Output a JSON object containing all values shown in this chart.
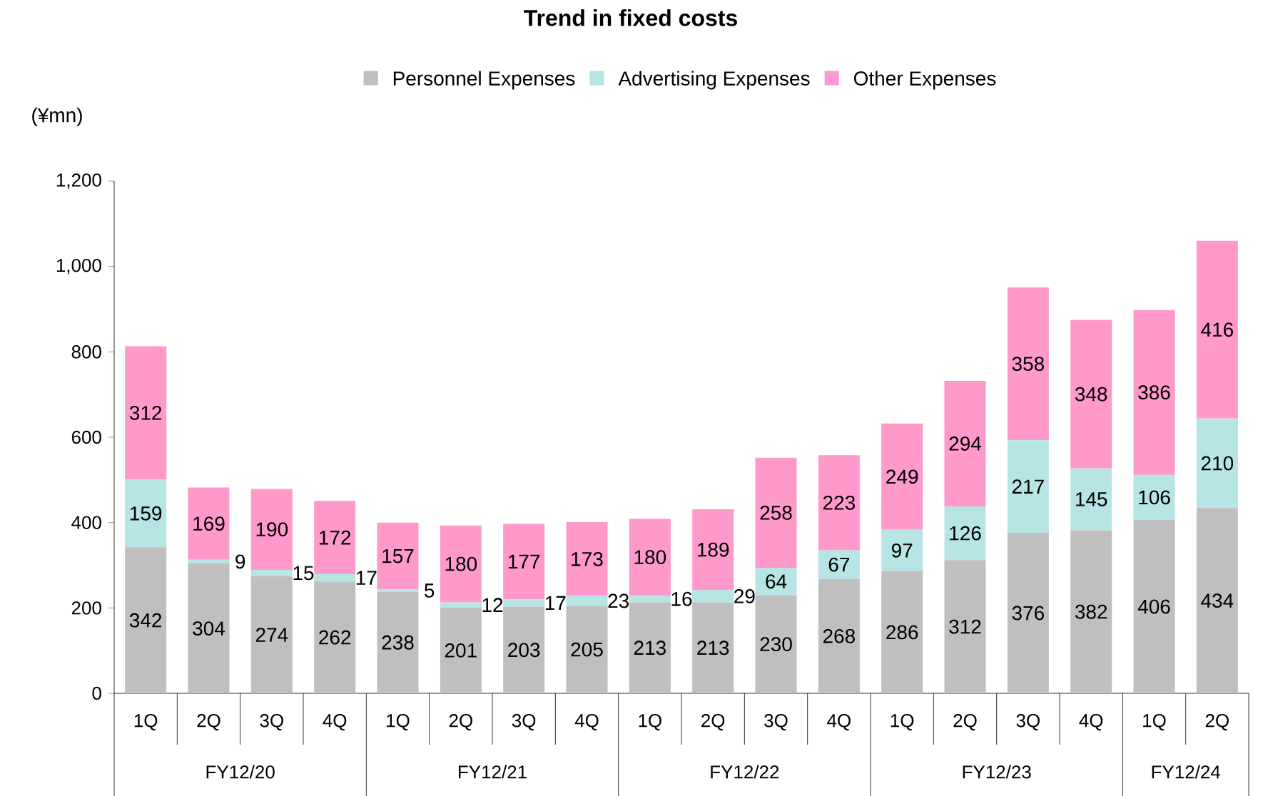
{
  "chart_data": {
    "type": "bar",
    "stacked": true,
    "title": "Trend in fixed costs",
    "ylabel": "(¥mn)",
    "categories": [
      "1Q",
      "2Q",
      "3Q",
      "4Q",
      "1Q",
      "2Q",
      "3Q",
      "4Q",
      "1Q",
      "2Q",
      "3Q",
      "4Q",
      "1Q",
      "2Q",
      "3Q",
      "4Q",
      "1Q",
      "2Q"
    ],
    "annotations": [
      "FY12/20",
      "FY12/21",
      "FY12/22",
      "FY12/23",
      "FY12/24"
    ],
    "series": [
      {
        "name": "Personnel Expenses",
        "color": "#bfbfbf",
        "values": [
          342,
          304,
          274,
          262,
          238,
          201,
          203,
          205,
          213,
          213,
          230,
          268,
          286,
          312,
          376,
          382,
          406,
          434
        ]
      },
      {
        "name": "Advertising Expenses",
        "color": "#b7e4e4",
        "values": [
          159,
          9,
          15,
          17,
          5,
          12,
          17,
          23,
          16,
          29,
          64,
          67,
          97,
          126,
          217,
          145,
          106,
          210
        ]
      },
      {
        "name": "Other Expenses",
        "color": "#ff99cc",
        "values": [
          312,
          169,
          190,
          172,
          157,
          180,
          177,
          173,
          180,
          189,
          258,
          223,
          249,
          294,
          358,
          348,
          386,
          416
        ]
      }
    ],
    "ylim": [
      0,
      1200
    ],
    "yticks": [
      0,
      200,
      400,
      600,
      800,
      {
        "value": 1000,
        "label": "1,000"
      },
      {
        "value": 1200,
        "label": "1,200"
      }
    ],
    "data_labels": true,
    "legend": "top",
    "grid": false
  }
}
